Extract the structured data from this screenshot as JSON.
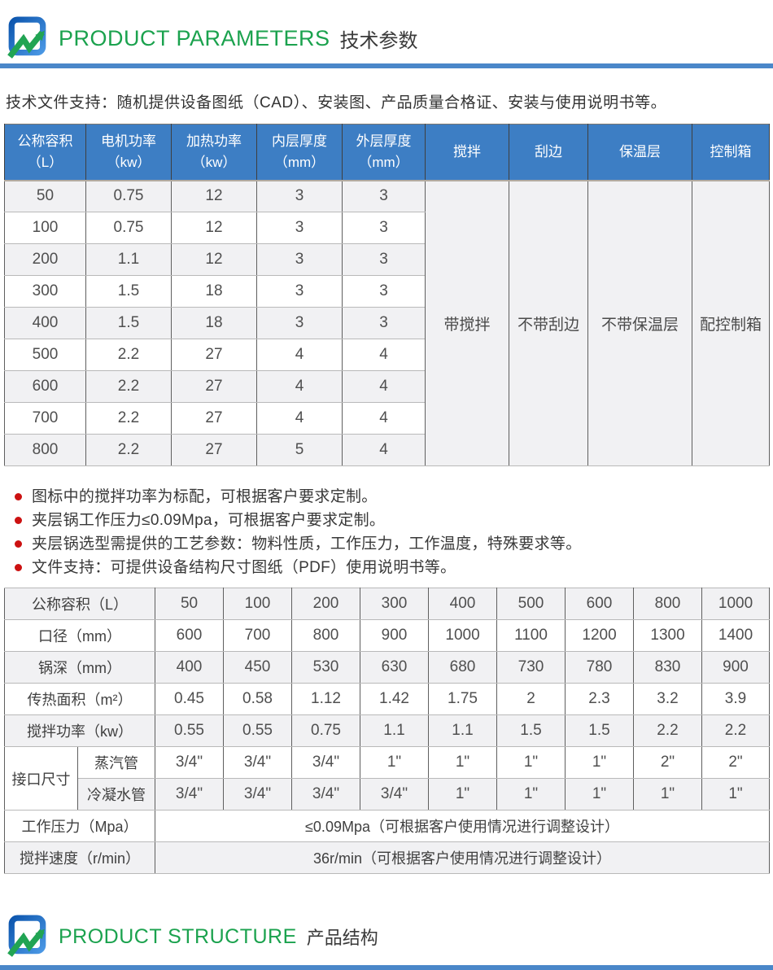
{
  "header": {
    "title_en": "PRODUCT PARAMETERS",
    "title_zh": "技术参数"
  },
  "intro": "技术文件支持：随机提供设备图纸（CAD）、安装图、产品质量合格证、安装与使用说明书等。",
  "table1": {
    "headers": [
      [
        "公称容积",
        "（L）"
      ],
      [
        "电机功率",
        "（kw）"
      ],
      [
        "加热功率",
        "（kw）"
      ],
      [
        "内层厚度",
        "（mm）"
      ],
      [
        "外层厚度",
        "（mm）"
      ],
      [
        "搅拌"
      ],
      [
        "刮边"
      ],
      [
        "保温层"
      ],
      [
        "控制箱"
      ]
    ],
    "rows": [
      [
        "50",
        "0.75",
        "12",
        "3",
        "3"
      ],
      [
        "100",
        "0.75",
        "12",
        "3",
        "3"
      ],
      [
        "200",
        "1.1",
        "12",
        "3",
        "3"
      ],
      [
        "300",
        "1.5",
        "18",
        "3",
        "3"
      ],
      [
        "400",
        "1.5",
        "18",
        "3",
        "3"
      ],
      [
        "500",
        "2.2",
        "27",
        "4",
        "4"
      ],
      [
        "600",
        "2.2",
        "27",
        "4",
        "4"
      ],
      [
        "700",
        "2.2",
        "27",
        "4",
        "4"
      ],
      [
        "800",
        "2.2",
        "27",
        "5",
        "4"
      ]
    ],
    "merged": [
      "带搅拌",
      "不带刮边",
      "不带保温层",
      "配控制箱"
    ]
  },
  "notes": [
    "图标中的搅拌功率为标配，可根据客户要求定制。",
    "夹层锅工作压力≤0.09Mpa，可根据客户要求定制。",
    "夹层锅选型需提供的工艺参数：物料性质，工作压力，工作温度，特殊要求等。",
    "文件支持：可提供设备结构尺寸图纸（PDF）使用说明书等。"
  ],
  "table2": {
    "rows": [
      {
        "label": "公称容积（L）",
        "values": [
          "50",
          "100",
          "200",
          "300",
          "400",
          "500",
          "600",
          "800",
          "1000"
        ]
      },
      {
        "label": "口径（mm）",
        "values": [
          "600",
          "700",
          "800",
          "900",
          "1000",
          "1100",
          "1200",
          "1300",
          "1400"
        ]
      },
      {
        "label": "锅深（mm）",
        "values": [
          "400",
          "450",
          "530",
          "630",
          "680",
          "730",
          "780",
          "830",
          "900"
        ]
      },
      {
        "label": "传热面积（m²）",
        "values": [
          "0.45",
          "0.58",
          "1.12",
          "1.42",
          "1.75",
          "2",
          "2.3",
          "3.2",
          "3.9"
        ]
      },
      {
        "label": "搅拌功率（kw）",
        "values": [
          "0.55",
          "0.55",
          "0.75",
          "1.1",
          "1.1",
          "1.5",
          "1.5",
          "2.2",
          "2.2"
        ]
      },
      {
        "group": "接口尺寸",
        "sublabel": "蒸汽管",
        "values": [
          "3/4\"",
          "3/4\"",
          "3/4\"",
          "1\"",
          "1\"",
          "1\"",
          "1\"",
          "2\"",
          "2\""
        ]
      },
      {
        "sublabel": "冷凝水管",
        "values": [
          "3/4\"",
          "3/4\"",
          "3/4\"",
          "3/4\"",
          "1\"",
          "1\"",
          "1\"",
          "1\"",
          "1\""
        ]
      },
      {
        "label": "工作压力（Mpa）",
        "merged": "≤0.09Mpa（可根据客户使用情况进行调整设计）"
      },
      {
        "label": "搅拌速度（r/min）",
        "merged": "36r/min（可根据客户使用情况进行调整设计）"
      }
    ]
  },
  "footer": {
    "title_en": "PRODUCT STRUCTURE",
    "title_zh": "产品结构"
  },
  "colors": {
    "accent_green": "#1ba24e",
    "accent_blue_rule": "#4a87c9",
    "table_header_blue": "#3d7ec4",
    "stripe_gray": "#f1f1f3",
    "bullet_red": "#cc1111"
  }
}
